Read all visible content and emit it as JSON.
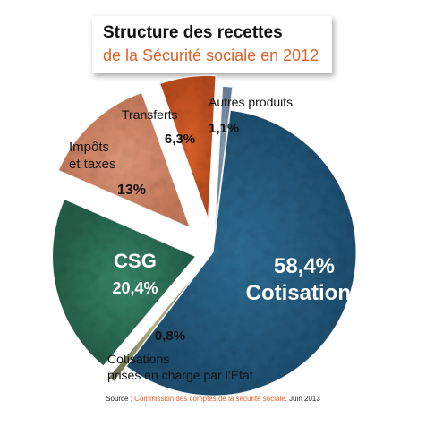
{
  "title": {
    "line1": "Structure des recettes",
    "line2": "de la Sécurité sociale en 2012"
  },
  "colors": {
    "title_accent": "#e0612a",
    "source_accent": "#e0612a"
  },
  "chart_data": {
    "type": "pie",
    "exploded": true,
    "slices": [
      {
        "label_lines": [
          "58,4%",
          "Cotisations"
        ],
        "value": 58.4,
        "color": "#2f6e96",
        "dark": "#1e4f70"
      },
      {
        "label_lines": [
          "Cotisations",
          "prises en charge par l’Etat"
        ],
        "percent_label": "0,8%",
        "value": 0.8,
        "color": "#b9bb8c",
        "dark": "#7d7f5a"
      },
      {
        "label_lines": [
          "CSG",
          "20,4%"
        ],
        "value": 20.4,
        "color": "#3a8a6a",
        "dark": "#245f49"
      },
      {
        "label_lines": [
          "Impôts",
          "et taxes"
        ],
        "percent_label": "13%",
        "value": 13,
        "color": "#e39a7b",
        "dark": "#c77a5b"
      },
      {
        "label_lines": [
          "Transferts"
        ],
        "percent_label": "6,3%",
        "value": 6.3,
        "color": "#e2652e",
        "dark": "#b94b1c"
      },
      {
        "label_lines": [
          "Autres produits"
        ],
        "percent_label": "1,1%",
        "value": 1.1,
        "color": "#8ea6bd",
        "dark": "#6a8299"
      }
    ]
  },
  "source": {
    "prefix": "Source : ",
    "name": "Commission des comptes de la sécurité sociale",
    "suffix": ". Juin 2013"
  }
}
